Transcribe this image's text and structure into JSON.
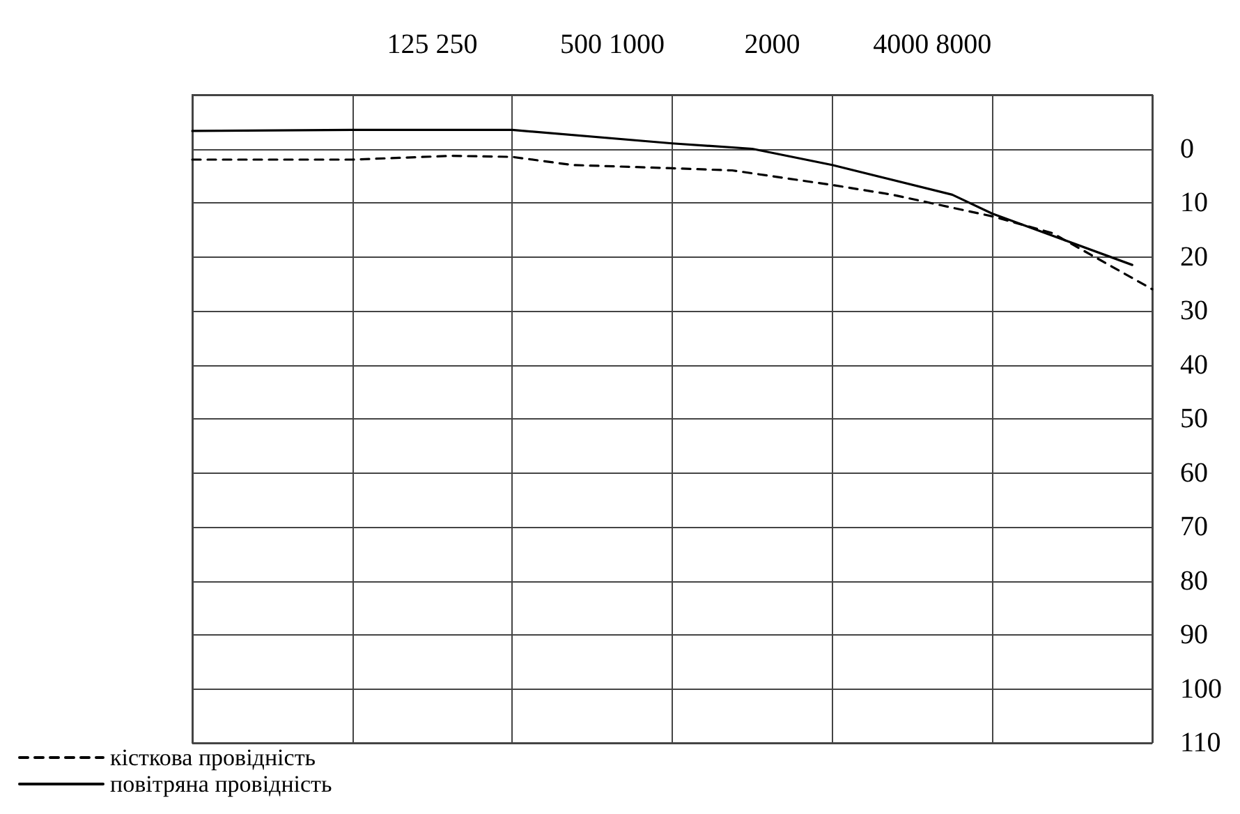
{
  "chart_data": {
    "type": "line",
    "categories": [
      null,
      null,
      null,
      null,
      null,
      null,
      null,
      null,
      null,
      null,
      null,
      null,
      "125 250",
      null,
      null,
      null,
      null,
      null,
      null,
      null,
      null,
      "500 1000",
      null,
      null,
      null,
      null,
      null,
      null,
      null,
      "2000",
      null,
      null,
      null,
      null,
      null,
      null,
      null,
      "4000 8000",
      null,
      null,
      null,
      null,
      null,
      null,
      null,
      null,
      null,
      null,
      null
    ],
    "series": [
      {
        "name": "кісткова провідність",
        "color": "#000000",
        "line_style": "dashed",
        "values": [
          2,
          null,
          null,
          null,
          null,
          null,
          null,
          null,
          2,
          null,
          null,
          null,
          null,
          1.3,
          null,
          null,
          1.5,
          null,
          null,
          3,
          null,
          null,
          null,
          null,
          3.6,
          null,
          null,
          4,
          null,
          null,
          null,
          null,
          6.7,
          null,
          null,
          8.5,
          null,
          null,
          null,
          null,
          12.5,
          null,
          null,
          15.6,
          null,
          null,
          null,
          null,
          26
        ]
      },
      {
        "name": "повітряна провідність",
        "color": "#000000",
        "line_style": "solid",
        "values": [
          -3.3,
          null,
          null,
          null,
          null,
          null,
          null,
          null,
          -3.5,
          null,
          null,
          null,
          null,
          null,
          null,
          null,
          -3.5,
          null,
          null,
          null,
          null,
          null,
          null,
          null,
          -1,
          null,
          null,
          null,
          0,
          null,
          null,
          null,
          3,
          null,
          null,
          null,
          null,
          null,
          8.5,
          null,
          12,
          null,
          null,
          null,
          null,
          null,
          null,
          21.5,
          null
        ]
      }
    ],
    "ylim": [
      110,
      -10
    ],
    "yticks": [
      {
        "value": -10,
        "label": null
      },
      0,
      10,
      20,
      30,
      40,
      50,
      60,
      70,
      80,
      90,
      100,
      110
    ],
    "grid": true,
    "legend": "bottom left",
    "marker": "none"
  }
}
